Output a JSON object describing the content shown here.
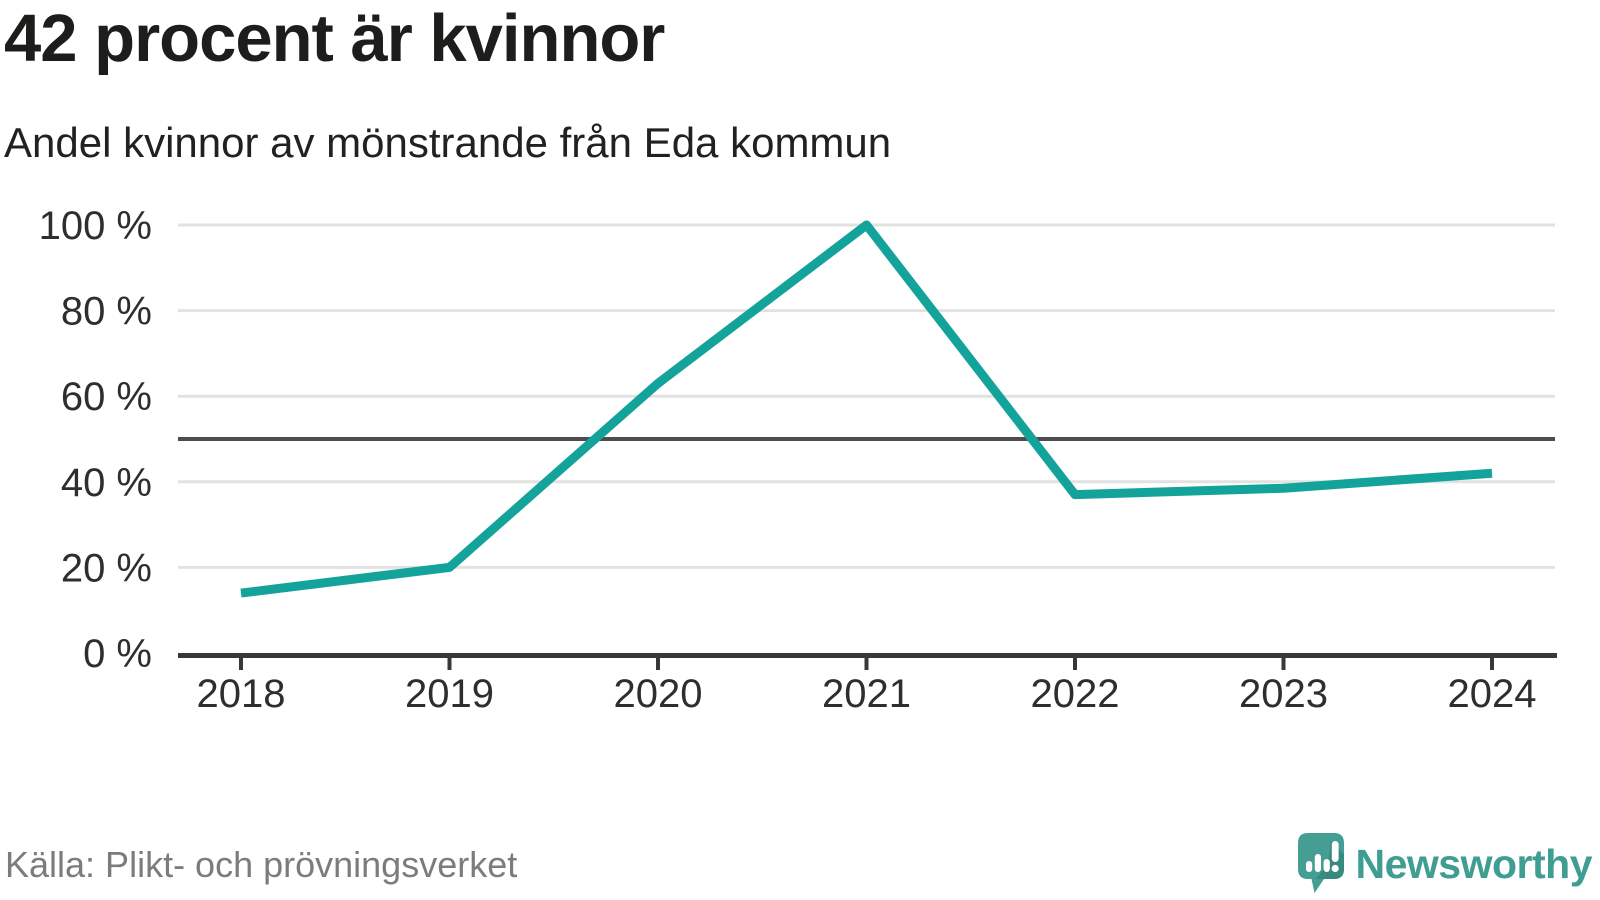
{
  "chart_data": {
    "type": "line",
    "title": "42 procent är kvinnor",
    "subtitle": "Andel kvinnor av mönstrande från Eda kommun",
    "categories": [
      "2018",
      "2019",
      "2020",
      "2021",
      "2022",
      "2023",
      "2024"
    ],
    "series": [
      {
        "name": "Andel kvinnor av mönstrande",
        "values": [
          14,
          20,
          63,
          100,
          37,
          38.5,
          42
        ]
      }
    ],
    "ylim": [
      0,
      100
    ],
    "yticks": [
      0,
      20,
      40,
      60,
      80,
      100
    ],
    "ytick_labels": [
      "0 %",
      "20 %",
      "40 %",
      "60 %",
      "80 %",
      "100 %"
    ],
    "xtick_labels": [
      "2018",
      "2019",
      "2020",
      "2021",
      "2022",
      "2023",
      "2024"
    ],
    "reference_line_value": 50,
    "grid": "horizontal",
    "legend": "none",
    "line_color": "#14a39a",
    "gridline_color": "#e2e2e2",
    "reference_line_color": "#4d4d4d",
    "axis_color": "#383838"
  },
  "footer": {
    "source": "Källa: Plikt- och prövningsverket",
    "brand": "Newsworthy"
  },
  "brand_colors": {
    "icon_fill": "#459e94",
    "icon_shadow": "#35867c",
    "wordmark": "#3f9d92"
  }
}
